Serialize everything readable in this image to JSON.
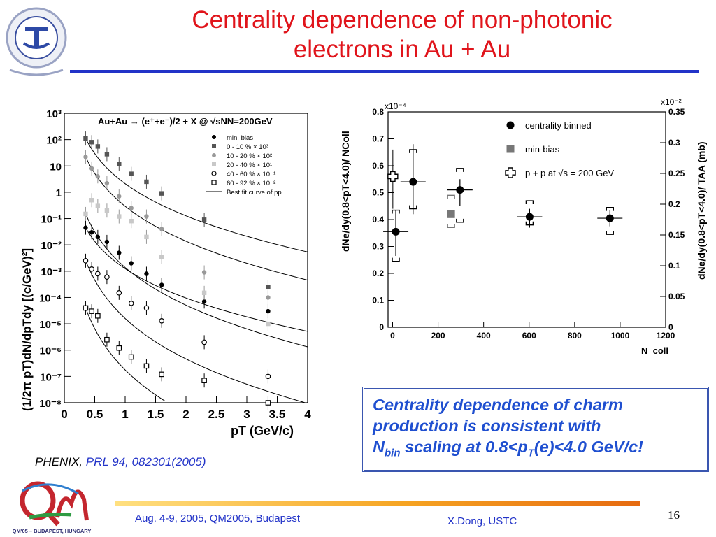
{
  "slide": {
    "title_line1": "Centrality dependence of non-photonic",
    "title_line2": "electrons in Au + Au",
    "citation_source": "PHENIX,",
    "citation_ref": "PRL 94, 082301(2005)",
    "callout_line1": "Centrality dependence of charm",
    "callout_line2": "production is consistent with",
    "callout_line3_a": "N",
    "callout_line3_sub1": "bin",
    "callout_line3_b": " scaling at 0.8<p",
    "callout_line3_sub2": "T",
    "callout_line3_c": "(e)<4.0 GeV/c!",
    "footer_left": "Aug. 4-9, 2005, QM2005, Budapest",
    "footer_right": "X.Dong,  USTC",
    "page_number": "16",
    "qm_logo_text": "QM'05 – BUDAPEST, HUNGARY",
    "colors": {
      "title": "#e0141b",
      "rule": "#2233c8",
      "callout_text": "#1f4fd0"
    }
  },
  "chart_data": [
    {
      "type": "scatter",
      "annotation": "Au+Au → (e⁺+e⁻)/2 + X @ √sNN=200GeV",
      "xlabel": "pT (GeV/c)",
      "ylabel": "(1/2π pT)dN/dpTdy [(c/GeV)²]",
      "xlim": [
        0,
        4
      ],
      "ylim": [
        1e-08,
        1000
      ],
      "yscale": "log",
      "xticks": [
        "0",
        "0.5",
        "1",
        "1.5",
        "2",
        "2.5",
        "3",
        "3.5",
        "4"
      ],
      "yticks": [
        "10⁻⁸",
        "10⁻⁷",
        "10⁻⁶",
        "10⁻⁵",
        "10⁻⁴",
        "10⁻³",
        "10⁻²",
        "10⁻¹",
        "1",
        "10",
        "10²",
        "10³"
      ],
      "legend_position": "top-right",
      "series": [
        {
          "name": "min. bias",
          "marker": "filled-circle",
          "color": "#000000",
          "x": [
            0.35,
            0.45,
            0.55,
            0.7,
            0.9,
            1.1,
            1.35,
            1.6,
            2.3,
            3.35
          ],
          "y": [
            0.045,
            0.03,
            0.02,
            0.013,
            0.005,
            0.002,
            0.0008,
            0.0003,
            7e-05,
            3e-05
          ]
        },
        {
          "name": "0 - 10 % × 10³",
          "marker": "filled-square",
          "color": "#555555",
          "x": [
            0.35,
            0.45,
            0.55,
            0.7,
            0.9,
            1.1,
            1.35,
            1.6,
            2.3,
            3.35
          ],
          "y": [
            110,
            80,
            55,
            28,
            12,
            5,
            2.5,
            0.9,
            0.09,
            0.00025
          ]
        },
        {
          "name": "10 - 20 % × 10²",
          "marker": "filled-circle",
          "color": "#999999",
          "x": [
            0.35,
            0.45,
            0.55,
            0.7,
            0.9,
            1.1,
            1.35,
            1.6,
            2.3,
            3.35
          ],
          "y": [
            22,
            8,
            4,
            2.2,
            0.7,
            0.25,
            0.12,
            0.04,
            0.0009,
            0.0001
          ]
        },
        {
          "name": "20 - 40 % × 10¹",
          "marker": "filled-square",
          "color": "#c8c8c8",
          "x": [
            0.35,
            0.45,
            0.55,
            0.7,
            0.9,
            1.1,
            1.35,
            1.6,
            2.3,
            3.35
          ],
          "y": [
            0.15,
            0.5,
            0.3,
            0.2,
            0.12,
            0.08,
            0.02,
            0.0035,
            0.00015,
            1e-05
          ]
        },
        {
          "name": "40 - 60 % × 10⁻¹",
          "marker": "open-circle",
          "color": "#000000",
          "x": [
            0.35,
            0.45,
            0.55,
            0.7,
            0.9,
            1.1,
            1.35,
            1.6,
            2.3,
            3.35
          ],
          "y": [
            0.0025,
            0.0012,
            0.0008,
            0.0006,
            0.00015,
            6e-05,
            4e-05,
            1.3e-05,
            2e-06,
            1e-07
          ]
        },
        {
          "name": "60 - 92 % × 10⁻²",
          "marker": "open-square",
          "color": "#000000",
          "x": [
            0.35,
            0.45,
            0.55,
            0.7,
            0.9,
            1.1,
            1.35,
            1.6,
            2.3,
            3.35
          ],
          "y": [
            4e-05,
            3e-05,
            2e-05,
            2.5e-06,
            1.2e-06,
            5.5e-07,
            2.5e-07,
            1.2e-07,
            7e-08,
            1e-08
          ]
        },
        {
          "name": "Best fit curve of pp",
          "marker": "line",
          "color": "#000000"
        }
      ]
    },
    {
      "type": "scatter",
      "xlabel": "N_coll",
      "ylabel": "dNe/dy(0.8<pT<4.0)/ NColl",
      "ylabel_right": "dNe/dy(0.8<pT<4.0)/ TAA (mb)",
      "xlim": [
        -20,
        1200
      ],
      "ylim": [
        0,
        0.8
      ],
      "ylim_right": [
        0,
        0.35
      ],
      "yscale_label": "x10⁻⁴",
      "yscale_label_right": "x10⁻²",
      "xticks": [
        "0",
        "200",
        "400",
        "600",
        "800",
        "1000",
        "1200"
      ],
      "yticks": [
        "0",
        "0.1",
        "0.2",
        "0.3",
        "0.4",
        "0.5",
        "0.6",
        "0.7",
        "0.8"
      ],
      "yticks_right": [
        "0",
        "0.05",
        "0.1",
        "0.15",
        "0.2",
        "0.25",
        "0.3",
        "0.35"
      ],
      "legend_position": "top-right",
      "series": [
        {
          "name": "centrality binned",
          "marker": "filled-circle",
          "color": "#000000",
          "x": [
            14,
            90,
            296,
            602,
            955
          ],
          "y": [
            0.355,
            0.54,
            0.51,
            0.41,
            0.405
          ]
        },
        {
          "name": "min-bias",
          "marker": "filled-square",
          "color": "#777777",
          "x": [
            257
          ],
          "y": [
            0.42
          ]
        },
        {
          "name": "p + p at √s = 200 GeV",
          "marker": "open-cross",
          "color": "#000000",
          "x": [
            1
          ],
          "y": [
            0.56
          ]
        }
      ]
    }
  ]
}
